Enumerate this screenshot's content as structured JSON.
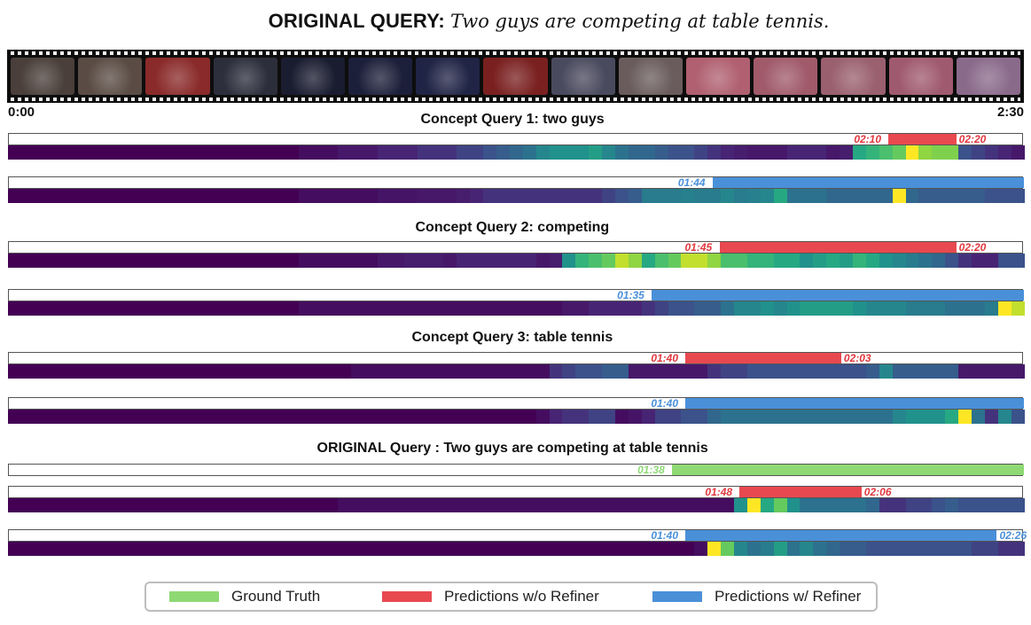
{
  "title": {
    "prefix": "ORIGINAL QUERY:",
    "text": "Two guys are competing at table tennis."
  },
  "timeline": {
    "start": "0:00",
    "end": "2:30",
    "start_seconds": 0,
    "end_seconds": 150
  },
  "filmstrip_frames": [
    "#4a3f3a",
    "#5a4c44",
    "#8a2a2a",
    "#2c2e3c",
    "#1a1c30",
    "#1c1f3a",
    "#202445",
    "#7a2020",
    "#4a4a5e",
    "#6a5c5c",
    "#b06070",
    "#a05a6a",
    "#9a6070",
    "#a05a70",
    "#8a6a8a"
  ],
  "sections": [
    {
      "title": "Concept Query 1: two guys",
      "rows": [
        {
          "kind": "pred",
          "start": "02:10",
          "end": "02:20",
          "start_s": 130,
          "end_s": 140,
          "heat": [
            0,
            0,
            0,
            0,
            0,
            0,
            0,
            0,
            0,
            0,
            0,
            0,
            0,
            0,
            0,
            0,
            0,
            0,
            0,
            0,
            0,
            0,
            0.05,
            0.05,
            0.05,
            0.1,
            0.1,
            0.1,
            0.15,
            0.15,
            0.15,
            0.2,
            0.2,
            0.2,
            0.25,
            0.25,
            0.3,
            0.35,
            0.4,
            0.45,
            0.55,
            0.6,
            0.6,
            0.6,
            0.65,
            0.55,
            0.45,
            0.4,
            0.4,
            0.35,
            0.3,
            0.3,
            0.25,
            0.2,
            0.15,
            0.12,
            0.1,
            0.1,
            0.1,
            0.15,
            0.15,
            0.15,
            0.1,
            0.12,
            0.7,
            0.75,
            0.8,
            0.85,
            1.0,
            0.9,
            0.88,
            0.88,
            0.3,
            0.25,
            0.2,
            0.15,
            0.1
          ]
        },
        {
          "kind": "ref",
          "start": "01:44",
          "end": "",
          "start_s": 104,
          "end_s": 150,
          "heat": [
            0,
            0,
            0,
            0,
            0,
            0,
            0,
            0,
            0,
            0,
            0,
            0,
            0,
            0,
            0,
            0,
            0,
            0,
            0,
            0,
            0,
            0,
            0.05,
            0.05,
            0.05,
            0.05,
            0.05,
            0.05,
            0.08,
            0.08,
            0.08,
            0.1,
            0.1,
            0.1,
            0.12,
            0.15,
            0.2,
            0.2,
            0.2,
            0.2,
            0.2,
            0.2,
            0.2,
            0.2,
            0.2,
            0.25,
            0.3,
            0.35,
            0.5,
            0.5,
            0.5,
            0.52,
            0.5,
            0.5,
            0.55,
            0.5,
            0.52,
            0.55,
            0.7,
            0.45,
            0.45,
            0.45,
            0.4,
            0.4,
            0.4,
            0.4,
            0.4,
            1.0,
            0.4,
            0.35,
            0.35,
            0.35,
            0.35,
            0.35,
            0.3,
            0.3,
            0.3
          ]
        }
      ]
    },
    {
      "title": "Concept Query 2: competing",
      "rows": [
        {
          "kind": "pred",
          "start": "01:45",
          "end": "02:20",
          "start_s": 105,
          "end_s": 140,
          "heat": [
            0,
            0,
            0,
            0,
            0,
            0,
            0,
            0,
            0,
            0,
            0,
            0,
            0,
            0,
            0,
            0,
            0,
            0,
            0,
            0,
            0,
            0,
            0.05,
            0.05,
            0.05,
            0.05,
            0.05,
            0.05,
            0.1,
            0.1,
            0.12,
            0.12,
            0.12,
            0.1,
            0.15,
            0.15,
            0.15,
            0.15,
            0.15,
            0.15,
            0.1,
            0.12,
            0.6,
            0.75,
            0.8,
            0.85,
            0.95,
            0.9,
            0.7,
            0.8,
            0.85,
            0.95,
            0.95,
            0.9,
            0.8,
            0.8,
            0.75,
            0.75,
            0.7,
            0.7,
            0.6,
            0.65,
            0.7,
            0.65,
            0.75,
            0.7,
            0.6,
            0.55,
            0.5,
            0.45,
            0.4,
            0.3,
            0.2,
            0.15,
            0.15,
            0.3,
            0.3
          ]
        },
        {
          "kind": "ref",
          "start": "01:35",
          "end": "",
          "start_s": 95,
          "end_s": 150,
          "heat": [
            0,
            0,
            0,
            0,
            0,
            0,
            0,
            0,
            0,
            0,
            0,
            0,
            0,
            0,
            0,
            0,
            0,
            0,
            0,
            0,
            0,
            0,
            0.05,
            0.05,
            0.05,
            0.05,
            0.05,
            0.05,
            0.05,
            0.05,
            0.05,
            0.05,
            0.05,
            0.05,
            0.05,
            0.05,
            0.05,
            0.05,
            0.05,
            0.05,
            0.05,
            0.05,
            0.1,
            0.1,
            0.15,
            0.15,
            0.15,
            0.15,
            0.2,
            0.25,
            0.3,
            0.3,
            0.35,
            0.35,
            0.45,
            0.55,
            0.55,
            0.6,
            0.55,
            0.6,
            0.65,
            0.65,
            0.65,
            0.65,
            0.6,
            0.55,
            0.55,
            0.55,
            0.5,
            0.5,
            0.5,
            0.45,
            0.45,
            0.45,
            0.5,
            1.0,
            0.95
          ]
        }
      ]
    },
    {
      "title": "Concept Query 3: table tennis",
      "rows": [
        {
          "kind": "pred",
          "start": "01:40",
          "end": "02:03",
          "start_s": 100,
          "end_s": 123,
          "heat": [
            0,
            0,
            0,
            0,
            0,
            0,
            0,
            0,
            0,
            0,
            0,
            0,
            0,
            0,
            0,
            0,
            0,
            0,
            0,
            0,
            0,
            0,
            0,
            0,
            0,
            0,
            0.05,
            0.05,
            0.05,
            0.05,
            0.05,
            0.05,
            0.05,
            0.05,
            0.05,
            0.05,
            0.05,
            0.05,
            0.05,
            0.05,
            0.05,
            0.2,
            0.25,
            0.3,
            0.3,
            0.35,
            0.35,
            0.1,
            0.1,
            0.1,
            0.1,
            0.1,
            0.1,
            0.2,
            0.25,
            0.25,
            0.3,
            0.3,
            0.3,
            0.3,
            0.3,
            0.3,
            0.3,
            0.3,
            0.3,
            0.35,
            0.55,
            0.35,
            0.35,
            0.35,
            0.35,
            0.35,
            0.1,
            0.1,
            0.1,
            0.1,
            0.1
          ]
        },
        {
          "kind": "ref",
          "start": "01:40",
          "end": "",
          "start_s": 100,
          "end_s": 150,
          "heat": [
            0,
            0,
            0,
            0,
            0,
            0,
            0,
            0,
            0,
            0,
            0,
            0,
            0,
            0,
            0,
            0,
            0,
            0,
            0,
            0,
            0,
            0,
            0,
            0,
            0,
            0,
            0,
            0,
            0,
            0,
            0,
            0,
            0,
            0,
            0,
            0,
            0,
            0,
            0,
            0,
            0.05,
            0.15,
            0.2,
            0.2,
            0.25,
            0.25,
            0.05,
            0.08,
            0.15,
            0.25,
            0.25,
            0.3,
            0.3,
            0.4,
            0.45,
            0.45,
            0.45,
            0.45,
            0.45,
            0.45,
            0.45,
            0.45,
            0.45,
            0.45,
            0.45,
            0.45,
            0.45,
            0.55,
            0.6,
            0.6,
            0.6,
            0.7,
            1.0,
            0.45,
            0.2,
            0.55,
            0.3
          ]
        }
      ]
    },
    {
      "title": "ORIGINAL Query : Two guys are competing at table tennis",
      "rows": [
        {
          "kind": "gt",
          "start": "01:38",
          "end": "",
          "start_s": 98,
          "end_s": 150,
          "heat": null
        },
        {
          "kind": "pred",
          "start": "01:48",
          "end": "02:06",
          "start_s": 108,
          "end_s": 126,
          "heat": [
            0,
            0,
            0,
            0,
            0,
            0,
            0,
            0,
            0,
            0,
            0,
            0,
            0,
            0,
            0,
            0,
            0,
            0,
            0,
            0,
            0,
            0,
            0,
            0,
            0,
            0.05,
            0.05,
            0.05,
            0.05,
            0.05,
            0.05,
            0.05,
            0.05,
            0.05,
            0.05,
            0.05,
            0.05,
            0.05,
            0.05,
            0.05,
            0.05,
            0.05,
            0.05,
            0.05,
            0.05,
            0.05,
            0.05,
            0.05,
            0.05,
            0.05,
            0.05,
            0.05,
            0.05,
            0.05,
            0.05,
            0.6,
            1.0,
            0.7,
            0.85,
            0.6,
            0.45,
            0.45,
            0.45,
            0.45,
            0.45,
            0.4,
            0.2,
            0.2,
            0.25,
            0.25,
            0.3,
            0.35,
            0.3,
            0.3,
            0.3,
            0.3,
            0.3
          ]
        },
        {
          "kind": "ref",
          "start": "01:40",
          "end": "02:26",
          "start_s": 100,
          "end_s": 146,
          "heat": [
            0,
            0,
            0,
            0,
            0,
            0,
            0,
            0,
            0,
            0,
            0,
            0,
            0,
            0,
            0,
            0,
            0,
            0,
            0,
            0,
            0,
            0,
            0,
            0,
            0,
            0,
            0,
            0,
            0,
            0,
            0,
            0,
            0,
            0,
            0,
            0,
            0,
            0,
            0,
            0,
            0,
            0,
            0,
            0,
            0,
            0,
            0,
            0,
            0,
            0,
            0,
            0,
            0.05,
            1.0,
            0.85,
            0.55,
            0.45,
            0.5,
            0.65,
            0.45,
            0.55,
            0.45,
            0.4,
            0.35,
            0.35,
            0.3,
            0.3,
            0.3,
            0.3,
            0.3,
            0.3,
            0.3,
            0.3,
            0.25,
            0.25,
            0.2,
            0.2
          ]
        }
      ]
    }
  ],
  "legend": [
    {
      "label": "Ground Truth",
      "color": "#8ed973"
    },
    {
      "label": "Predictions w/o Refiner",
      "color": "#e84950"
    },
    {
      "label": "Predictions w/ Refiner",
      "color": "#4a90d9"
    }
  ],
  "colors": {
    "gt": "#8ed973",
    "pred": "#e84950",
    "ref": "#4a90d9"
  }
}
